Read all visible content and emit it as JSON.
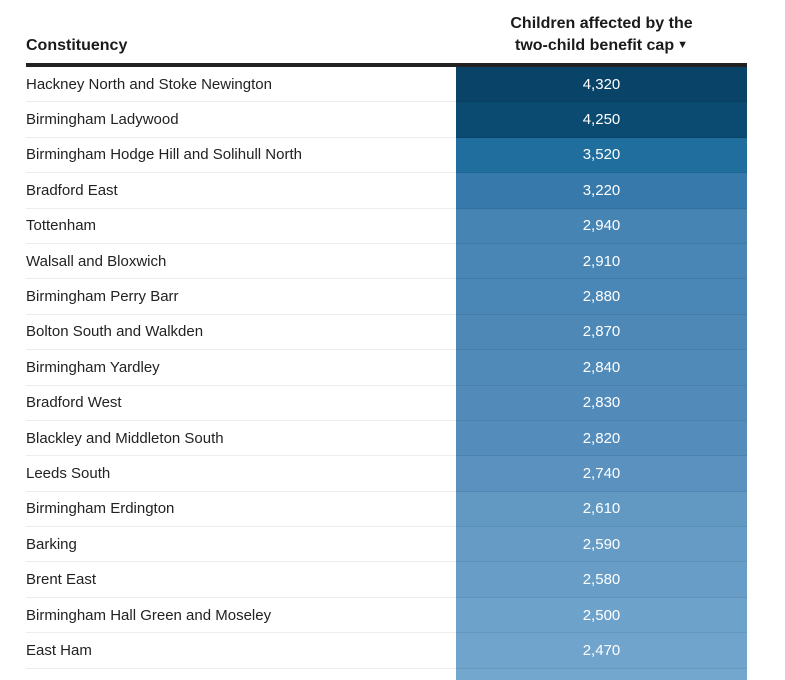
{
  "header": {
    "col1": "Constituency",
    "col2_line1": "Children affected by the",
    "col2_line2": "two-child benefit cap",
    "sort_indicator": "▼"
  },
  "colors": {
    "background": "#ffffff",
    "header_text": "#1a1a1a",
    "header_border": "#222222",
    "row_text": "#222222",
    "value_text": "#ffffff",
    "row_divider": "#ededed",
    "scale_dark": "#094368",
    "scale_light": "#73a7ce"
  },
  "chart_data": {
    "type": "table",
    "columns": [
      "Constituency",
      "Children affected by the two-child benefit cap"
    ],
    "sort": {
      "column": "Children affected by the two-child benefit cap",
      "direction": "descending"
    },
    "color_scale": {
      "type": "sequential-blue",
      "applies_to": "value-column-background",
      "dark_hex": "#094368",
      "light_hex": "#73a7ce"
    },
    "rows": [
      {
        "constituency": "Hackney North and Stoke Newington",
        "value": 4320,
        "display": "4,320",
        "cell_color": "#094368"
      },
      {
        "constituency": "Birmingham Ladywood",
        "value": 4250,
        "display": "4,250",
        "cell_color": "#0b4a71"
      },
      {
        "constituency": "Birmingham Hodge Hill and Solihull North",
        "value": 3520,
        "display": "3,520",
        "cell_color": "#1f6e9e"
      },
      {
        "constituency": "Bradford East",
        "value": 3220,
        "display": "3,220",
        "cell_color": "#3679aa"
      },
      {
        "constituency": "Tottenham",
        "value": 2940,
        "display": "2,940",
        "cell_color": "#4684b4"
      },
      {
        "constituency": "Walsall and Bloxwich",
        "value": 2910,
        "display": "2,910",
        "cell_color": "#4986b5"
      },
      {
        "constituency": "Birmingham Perry Barr",
        "value": 2880,
        "display": "2,880",
        "cell_color": "#4b87b6"
      },
      {
        "constituency": "Bolton South and Walkden",
        "value": 2870,
        "display": "2,870",
        "cell_color": "#4d88b7"
      },
      {
        "constituency": "Birmingham Yardley",
        "value": 2840,
        "display": "2,840",
        "cell_color": "#508ab9"
      },
      {
        "constituency": "Bradford West",
        "value": 2830,
        "display": "2,830",
        "cell_color": "#528bba"
      },
      {
        "constituency": "Blackley and Middleton South",
        "value": 2820,
        "display": "2,820",
        "cell_color": "#548dbb"
      },
      {
        "constituency": "Leeds South",
        "value": 2740,
        "display": "2,740",
        "cell_color": "#5a91be"
      },
      {
        "constituency": "Birmingham Erdington",
        "value": 2610,
        "display": "2,610",
        "cell_color": "#6299c3"
      },
      {
        "constituency": "Barking",
        "value": 2590,
        "display": "2,590",
        "cell_color": "#659bc5"
      },
      {
        "constituency": "Brent East",
        "value": 2580,
        "display": "2,580",
        "cell_color": "#679dc6"
      },
      {
        "constituency": "Birmingham Hall Green and Moseley",
        "value": 2500,
        "display": "2,500",
        "cell_color": "#6da2ca"
      },
      {
        "constituency": "East Ham",
        "value": 2470,
        "display": "2,470",
        "cell_color": "#70a4cc"
      }
    ]
  },
  "partial_row": {
    "cell_color": "#73a7ce"
  }
}
